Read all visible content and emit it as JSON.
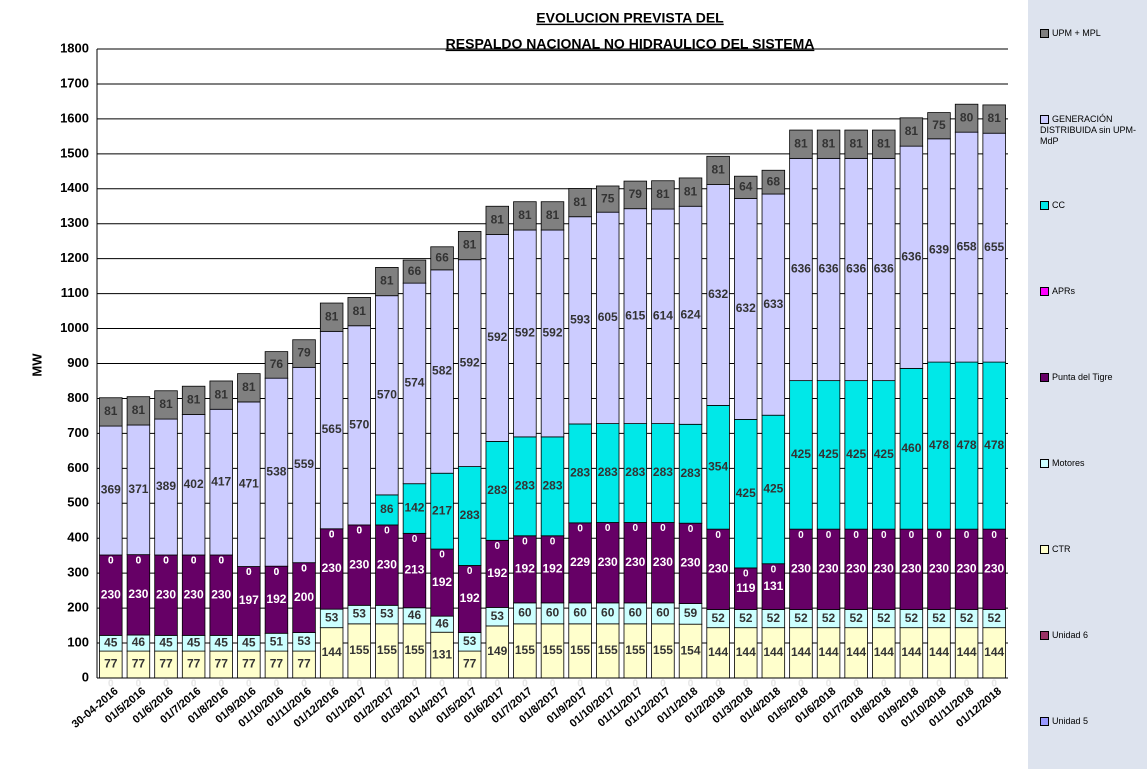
{
  "chart_data": {
    "type": "bar",
    "stacked": true,
    "title_lines": [
      "EVOLUCION PREVISTA DEL",
      "RESPALDO NACIONAL NO HIDRAULICO DEL SISTEMA"
    ],
    "ylabel": "MW",
    "categories": [
      "30-04-2016",
      "01/5/2016",
      "01/6/2016",
      "01/7/2016",
      "01/8/2016",
      "01/9/2016",
      "01/10/2016",
      "01/11/2016",
      "01/12/2016",
      "01/1/2017",
      "01/2/2017",
      "01/3/2017",
      "01/4/2017",
      "01/5/2017",
      "01/6/2017",
      "01/7/2017",
      "01/8/2017",
      "01/9/2017",
      "01/10/2017",
      "01/11/2017",
      "01/12/2017",
      "01/1/2018",
      "01/2/2018",
      "01/3/2018",
      "01/4/2018",
      "01/5/2018",
      "01/6/2018",
      "01/7/2018",
      "01/8/2018",
      "01/9/2018",
      "01/10/2018",
      "01/11/2018",
      "01/12/2018"
    ],
    "series": [
      {
        "name": "Unidad 5",
        "color": "#9999ff",
        "values": [
          0,
          0,
          0,
          0,
          0,
          0,
          0,
          0,
          0,
          0,
          0,
          0,
          0,
          0,
          0,
          0,
          0,
          0,
          0,
          0,
          0,
          0,
          0,
          0,
          0,
          0,
          0,
          0,
          0,
          0,
          0,
          0,
          0
        ]
      },
      {
        "name": "Unidad 6",
        "color": "#993366",
        "values": [
          0,
          0,
          0,
          0,
          0,
          0,
          0,
          0,
          0,
          0,
          0,
          0,
          0,
          0,
          0,
          0,
          0,
          0,
          0,
          0,
          0,
          0,
          0,
          0,
          0,
          0,
          0,
          0,
          0,
          0,
          0,
          0,
          0
        ]
      },
      {
        "name": "CTR",
        "color": "#ffffcc",
        "values": [
          77,
          77,
          77,
          77,
          77,
          77,
          77,
          77,
          144,
          155,
          155,
          155,
          131,
          77,
          149,
          155,
          155,
          155,
          155,
          155,
          155,
          154,
          144,
          144,
          144,
          144,
          144,
          144,
          144,
          144,
          144,
          144,
          144
        ]
      },
      {
        "name": "Motores",
        "color": "#ccffff",
        "values": [
          45,
          46,
          45,
          45,
          45,
          45,
          51,
          53,
          53,
          53,
          53,
          46,
          46,
          53,
          53,
          60,
          60,
          60,
          60,
          60,
          60,
          59,
          52,
          52,
          52,
          52,
          52,
          52,
          52,
          52,
          52,
          52,
          52
        ]
      },
      {
        "name": "Punta del Tigre",
        "color": "#660066",
        "values": [
          230,
          230,
          230,
          230,
          230,
          197,
          192,
          200,
          230,
          230,
          230,
          213,
          192,
          192,
          192,
          192,
          192,
          229,
          230,
          230,
          230,
          230,
          230,
          119,
          131,
          230,
          230,
          230,
          230,
          230,
          230,
          230,
          230
        ]
      },
      {
        "name": "APRs",
        "color": "#ff00ff",
        "values": [
          0,
          0,
          0,
          0,
          0,
          0,
          0,
          0,
          0,
          0,
          0,
          0,
          0,
          0,
          0,
          0,
          0,
          0,
          0,
          0,
          0,
          0,
          0,
          0,
          0,
          0,
          0,
          0,
          0,
          0,
          0,
          0,
          0
        ]
      },
      {
        "name": "CC",
        "color": "#00e8e8",
        "values": [
          0,
          0,
          0,
          0,
          0,
          0,
          0,
          0,
          0,
          0,
          86,
          142,
          217,
          283,
          283,
          283,
          283,
          283,
          283,
          283,
          283,
          283,
          354,
          425,
          425,
          425,
          425,
          425,
          425,
          460,
          478,
          478,
          478
        ]
      },
      {
        "name": "GENERACIÓN DISTRIBUIDA sin UPM-MdP",
        "color": "#ccccff",
        "values": [
          369,
          371,
          389,
          402,
          417,
          471,
          538,
          559,
          565,
          570,
          570,
          574,
          582,
          592,
          592,
          592,
          592,
          593,
          605,
          615,
          614,
          624,
          632,
          632,
          633,
          636,
          636,
          636,
          636,
          636,
          639,
          658,
          655
        ]
      },
      {
        "name": "UPM + MPL",
        "color": "#808080",
        "values": [
          81,
          81,
          81,
          81,
          81,
          81,
          76,
          79,
          81,
          81,
          81,
          66,
          66,
          81,
          81,
          81,
          81,
          81,
          75,
          79,
          81,
          81,
          81,
          64,
          68,
          81,
          81,
          81,
          81,
          81,
          75,
          80,
          81
        ]
      }
    ],
    "ylim": [
      0,
      1800
    ],
    "yticks": [
      0,
      100,
      200,
      300,
      400,
      500,
      600,
      700,
      800,
      900,
      1000,
      1100,
      1200,
      1300,
      1400,
      1500,
      1600,
      1700,
      1800
    ],
    "grid": true,
    "legend": "right"
  }
}
